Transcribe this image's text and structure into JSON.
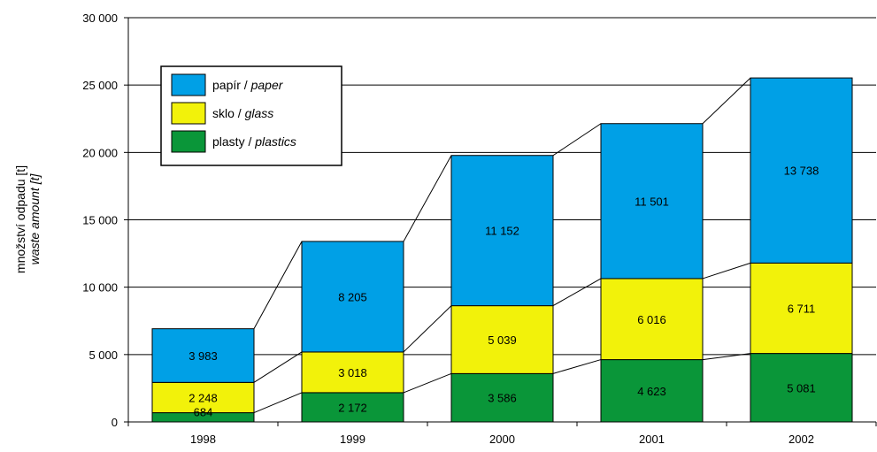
{
  "chart_data": {
    "type": "bar",
    "stacked": true,
    "categories": [
      "1998",
      "1999",
      "2000",
      "2001",
      "2002"
    ],
    "series": [
      {
        "key": "plastics",
        "name_cs": "plasty",
        "name_en": "plastics",
        "color": "#0a9639",
        "values": [
          684,
          2172,
          3586,
          4623,
          5081
        ]
      },
      {
        "key": "glass",
        "name_cs": "sklo",
        "name_en": "glass",
        "color": "#f2f20a",
        "values": [
          2248,
          3018,
          5039,
          6016,
          6711
        ]
      },
      {
        "key": "paper",
        "name_cs": "papír",
        "name_en": "paper",
        "color": "#00a0e6",
        "values": [
          3983,
          8205,
          11152,
          11501,
          13738
        ]
      }
    ],
    "value_labels": [
      [
        "684",
        "2 172",
        "3 586",
        "4 623",
        "5 081"
      ],
      [
        "2 248",
        "3 018",
        "5 039",
        "6 016",
        "6 711"
      ],
      [
        "3 983",
        "8 205",
        "11 152",
        "11 501",
        "13 738"
      ]
    ],
    "yticks": [
      0,
      5000,
      10000,
      15000,
      20000,
      25000,
      30000
    ],
    "ytick_labels": [
      "0",
      "5 000",
      "10 000",
      "15 000",
      "20 000",
      "25 000",
      "30 000"
    ],
    "ylim": [
      0,
      30000
    ],
    "ylabel_cs": "množství odpadu [t]",
    "ylabel_en": "waste amount [t]",
    "legend_position": "top-left",
    "legend_separator": " / ",
    "grid": true,
    "connector_lines": true
  }
}
